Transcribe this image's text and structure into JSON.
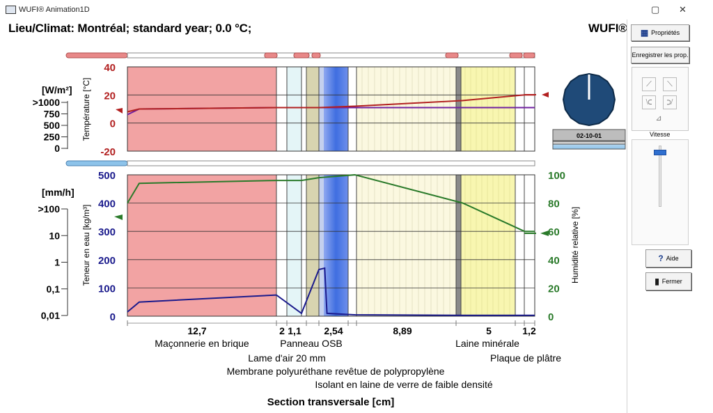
{
  "window": {
    "title": "WUFI® Animation1D",
    "minimize": "▢",
    "close": "✕"
  },
  "header": {
    "climate": "Lieu/Climat: Montréal; standard year; 0.0 °C;",
    "brand": "WUFI®"
  },
  "side": {
    "properties_label": "Propriétés",
    "save_props_label": "Enregistrer les prop.",
    "date": "02-10-01",
    "speed_label": "Vitesse",
    "help_label": "Aide",
    "close_label": "Fermer"
  },
  "colors": {
    "temperature": "#b22020",
    "dewpoint": "#7020a0",
    "water": "#1a1a8c",
    "rh": "#2a7a2a",
    "brick": "#f2a3a3",
    "insulation": "#fbf8e0",
    "mineral_wool": "#f8f6b0",
    "osb": "#4a78e0"
  },
  "chart_data": [
    {
      "type": "line",
      "title": "",
      "ylabel": "Température [°C]",
      "ylim": [
        -20,
        40
      ],
      "y_ticks": [
        "40",
        "20",
        "0",
        "-20"
      ],
      "flux_label": "[W/m²]",
      "flux_ticks": [
        ">1000",
        "750",
        "500",
        "250",
        "0"
      ],
      "series": [
        {
          "name": "Température",
          "x": [
            0,
            1.0,
            12.7,
            14.7,
            15.8,
            18.9,
            27.8,
            32.8,
            34.0
          ],
          "values": [
            8,
            10,
            11,
            11,
            11,
            12,
            16,
            20,
            20
          ]
        },
        {
          "name": "",
          "x": [
            0,
            1.0,
            12.7,
            14.7,
            15.8,
            18.9,
            27.8,
            32.8,
            34.0
          ],
          "values": [
            6,
            10,
            11,
            11,
            11,
            11,
            11,
            11,
            11
          ]
        }
      ]
    },
    {
      "type": "line",
      "ylabel": "Teneur en eau [kg/m³]",
      "y2label": "Humidité relative [%]",
      "ylim": [
        0,
        500
      ],
      "y2lim": [
        0,
        100
      ],
      "y_ticks": [
        "500",
        "400",
        "300",
        "200",
        "100",
        "0"
      ],
      "y2_ticks": [
        "100",
        "80",
        "60",
        "40",
        "20",
        "0"
      ],
      "rain_label": "[mm/h]",
      "rain_ticks": [
        ">100",
        "10",
        "1",
        "0,1",
        "0,01"
      ],
      "series": [
        {
          "name": "Teneur en eau",
          "x": [
            0,
            1.0,
            12.7,
            14.7,
            15.8,
            16.3,
            16.5,
            18.9,
            27.8,
            32.8,
            34.0
          ],
          "values": [
            15,
            50,
            75,
            10,
            165,
            170,
            10,
            5,
            3,
            3,
            3
          ]
        },
        {
          "name": "Humidité relative",
          "x": [
            0,
            1.0,
            12.7,
            14.7,
            15.8,
            18.9,
            27.8,
            32.8,
            34.0
          ],
          "values": [
            80,
            94,
            96,
            96,
            98,
            100,
            80,
            60,
            60
          ]
        }
      ],
      "layers": [
        {
          "thickness": "12,7",
          "name": "Maçonnerie en brique"
        },
        {
          "thickness": "2",
          "name": "Lame d'air 20 mm"
        },
        {
          "thickness": "1,1",
          "name": "Membrane polyuréthane revêtue de polypropylène"
        },
        {
          "thickness": "2,54",
          "name": "Panneau OSB"
        },
        {
          "thickness": "8,89",
          "name": "Isolant en laine de verre de faible densité"
        },
        {
          "thickness": "5",
          "name": "Laine minérale"
        },
        {
          "thickness": "1,2",
          "name": "Plaque de plâtre"
        }
      ],
      "xlabel": "Section transversale [cm]"
    }
  ]
}
